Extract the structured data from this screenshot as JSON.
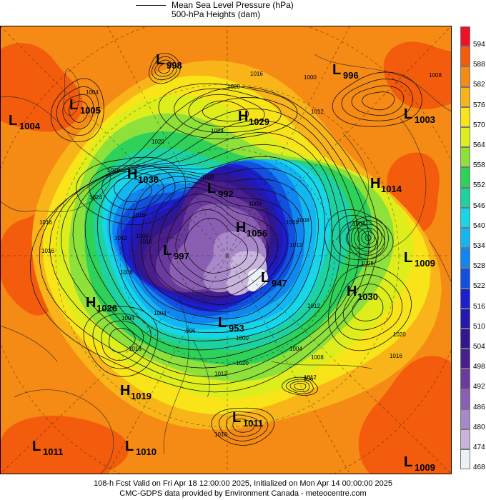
{
  "header": {
    "legend_line1": "Mean Sea Level Pressure (hPa)",
    "legend_line2": "500-hPa Heights (dam)"
  },
  "colorbar": {
    "levels": [
      "594",
      "588",
      "582",
      "576",
      "570",
      "564",
      "558",
      "552",
      "546",
      "540",
      "534",
      "528",
      "522",
      "516",
      "510",
      "504",
      "498",
      "492",
      "486",
      "480",
      "474",
      "468"
    ],
    "colors": [
      "#f0102a",
      "#f25c0c",
      "#f58a14",
      "#f8b418",
      "#f8e418",
      "#ddee1c",
      "#8ee03a",
      "#2ed15a",
      "#1dd2a0",
      "#16d6e8",
      "#14b6f2",
      "#1186f0",
      "#1250e0",
      "#1a1fd0",
      "#2418b2",
      "#32168e",
      "#4a1e8c",
      "#6a3a9e",
      "#8a5eb2",
      "#a888c8",
      "#c8b4dc",
      "#ecf0f8"
    ]
  },
  "map": {
    "pressure_centers": [
      {
        "type": "L",
        "value": "998"
      },
      {
        "type": "L",
        "value": "996"
      },
      {
        "type": "L",
        "value": "1005"
      },
      {
        "type": "L",
        "value": "1004"
      },
      {
        "type": "H",
        "value": "1029"
      },
      {
        "type": "L",
        "value": "1003"
      },
      {
        "type": "H",
        "value": "1036"
      },
      {
        "type": "H",
        "value": "1014"
      },
      {
        "type": "L",
        "value": "992"
      },
      {
        "type": "H",
        "value": "1056"
      },
      {
        "type": "L",
        "value": "997"
      },
      {
        "type": "L",
        "value": "1009"
      },
      {
        "type": "L",
        "value": "947"
      },
      {
        "type": "H",
        "value": "1026"
      },
      {
        "type": "H",
        "value": "1030"
      },
      {
        "type": "L",
        "value": "953"
      },
      {
        "type": "H",
        "value": "1019"
      },
      {
        "type": "L",
        "value": "1011"
      },
      {
        "type": "L",
        "value": "1011"
      },
      {
        "type": "L",
        "value": "1010"
      },
      {
        "type": "L",
        "value": "1009"
      }
    ],
    "isobar_labels": [
      "1016",
      "1020",
      "1012",
      "1008",
      "1024",
      "1020",
      "1028",
      "1024",
      "1016",
      "1012",
      "1016",
      "1008",
      "1004",
      "996",
      "1000",
      "1004",
      "1000",
      "1008",
      "1012",
      "1012",
      "1000",
      "1004",
      "1008",
      "996",
      "1016",
      "1020",
      "1012",
      "1016",
      "1008",
      "1004",
      "1016",
      "1012",
      "1020",
      "1016",
      "1016",
      "1016",
      "1008",
      "1004",
      "1000"
    ]
  },
  "footer": {
    "line1": "108-h Fcst Valid on Fri Apr 18 12:00:00 2025, Initialized on Mon Apr 14 00:00:00 2025",
    "line2": "CMC-GDPS data provided by Environment Canada - meteocentre.com"
  }
}
